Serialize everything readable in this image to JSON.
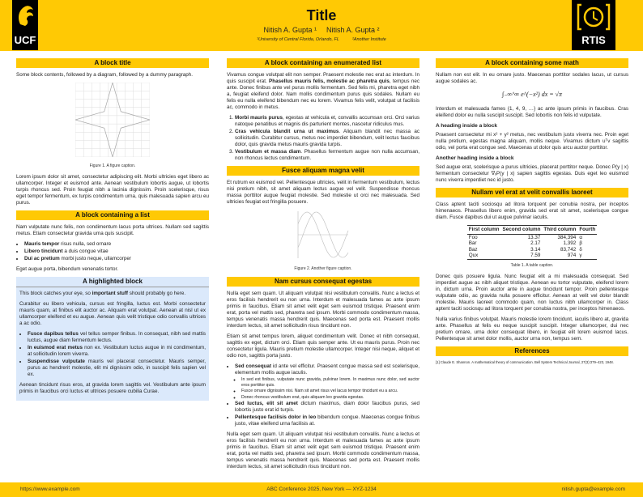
{
  "header": {
    "title": "Title",
    "authors": [
      "Nitish A. Gupta ¹",
      "Nitish A. Gupta ²"
    ],
    "affiliations": [
      "¹University of Central Florida, Orlando, FL",
      "²Another Institute"
    ],
    "logo_left": "UCF",
    "logo_right": "RTIS",
    "accent": "#FFC904"
  },
  "col1": {
    "b1": {
      "title": "A block title",
      "p1": "Some block contents, followed by a diagram, followed by a dummy paragraph.",
      "caption": "Figure 1. A figure caption.",
      "p2": "Lorem ipsum dolor sit amet, consectetur adipiscing elit. Morbi ultricies eget libero ac ullamcorper. Integer et euismod ante. Aenean vestibulum lobortis augue, ut lobortis turpis rhoncus sed. Proin feugiat nibh a lacinia dignissim. Proin scelerisque, risus eget tempor fermentum, ex turpis condimentum urna, quis malesuada sapien arcu eu purus."
    },
    "b2": {
      "title": "A block containing a list",
      "p1": "Nam vulputate nunc felis, non condimentum lacus porta ultrices. Nullam sed sagittis metus. Etiam consectetur gravida urna quis suscipit.",
      "items": [
        {
          "b": "Mauris tempor",
          "t": " risus nulla, sed ornare"
        },
        {
          "b": "Libero tincidunt",
          "t": " a duis congue vitae"
        },
        {
          "b": "Dui ac pretium",
          "t": " morbi justo neque, ullamcorper"
        }
      ],
      "p2": "Eget augue porta, bibendum venenatis tortor."
    },
    "b3": {
      "title": "A highlighted block",
      "p1a": "This block catches your eye, so ",
      "p1b": "important stuff",
      "p1c": " should probably go here.",
      "p2": "Curabitur eu libero vehicula, cursus est fringilla, luctus est. Morbi consectetur mauris quam, at finibus elit auctor ac. Aliquam erat volutpat. Aenean at nisl ut ex ullamcorper eleifend et eu augue. Aenean quis velit tristique odio convallis ultrices a ac odio.",
      "items": [
        {
          "b": "Fusce dapibus tellus",
          "t": " vel tellus semper finibus. In consequat, nibh sed mattis luctus, augue diam fermentum lectus."
        },
        {
          "b": "In euismod erat metus",
          "t": " non ex. Vestibulum luctus augue in mi condimentum, at sollicitudin lorem viverra."
        },
        {
          "b": "Suspendisse vulputate",
          "t": " mauris vel placerat consectetur. Mauris semper, purus ac hendrerit molestie, elit mi dignissim odio, in suscipit felis sapien vel ex."
        }
      ],
      "p3": "Aenean tincidunt risus eros, at gravida lorem sagittis vel. Vestibulum ante ipsum primis in faucibus orci luctus et ultrices posuere cubilia Curae.",
      "bg": "#DBE9FB"
    }
  },
  "col2": {
    "b1": {
      "title": "A block containing an enumerated list",
      "p1a": "Vivamus congue volutpat elit non semper. Praesent molestie nec erat ac interdum. In quis suscipit erat. ",
      "p1b": "Phasellus mauris felis, molestie ac pharetra quis",
      "p1c": ", tempus nec ante. Donec finibus ante vel purus mollis fermentum. Sed felis mi, pharetra eget nibh a, feugiat eleifend dolor. Nam mollis condimentum purus quis sodales. Nullam eu felis eu nulla eleifend bibendum nec eu lorem. Vivamus felis velit, volutpat ut facilisis ac, commodo in metus.",
      "items": [
        {
          "b": "Morbi mauris purus",
          "t": ", egestas at vehicula et, convallis accumsan orci. Orci varius natoque penatibus et magnis dis parturient montes, nascetur ridiculus mus."
        },
        {
          "b": "Cras vehicula blandit urna ut maximus",
          "t": ". Aliquam blandit nec massa ac sollicitudin. Curabitur cursus, metus nec imperdiet bibendum, velit lectus faucibus dolor, quis gravida metus mauris gravida turpis."
        },
        {
          "b": "Vestibulum et massa diam",
          "t": ". Phasellus fermentum augue non nulla accumsan, non rhoncus lectus condimentum."
        }
      ]
    },
    "b2": {
      "title": "Fusce aliquam magna velit",
      "p1": "Et rutrum ex euismod vel. Pellentesque ultricies, velit in fermentum vestibulum, lectus nisi pretium nibh, sit amet aliquam lectus augue vel velit. Suspendisse rhoncus massa porttitor augue feugiat molestie. Sed molestie ut orci nec malesuada. Sed ultricies feugiat est fringilla posuere.",
      "caption": "Figure 2. Another figure caption."
    },
    "b3": {
      "title": "Nam cursus consequat egestas",
      "p1": "Nulla eget sem quam. Ut aliquam volutpat nisi vestibulum convallis. Nunc a lectus et eros facilisis hendrerit eu non urna. Interdum et malesuada fames ac ante ipsum primis in faucibus. Etiam sit amet velit eget sem euismod tristique. Praesent enim erat, porta vel mattis sed, pharetra sed ipsum. Morbi commodo condimentum massa, tempus venenatis massa hendrerit quis. Maecenas sed porta est. Praesent mollis interdum lectus, sit amet sollicitudin risus tincidunt non.",
      "p2": "Etiam sit amet tempus lorem, aliquet condimentum velit. Donec et nibh consequat, sagittis ex eget, dictum orci. Etiam quis semper ante. Ut eu mauris purus. Proin nec consectetur ligula. Mauris pretium molestie ullamcorper. Integer nisi neque, aliquet et odio non, sagittis porta justo.",
      "items": [
        {
          "b": "Sed consequat",
          "t": " id ante vel efficitur. Praesent congue massa sed est scelerisque, elementum mollis augue iaculis.",
          "sub": [
            "In sed est finibus, vulputate nunc gravida, pulvinar lorem. In maximus nunc dolor, sed auctor eros porttitor quis.",
            "Fusce ornare dignissim nisi. Nam sit amet risus vel lacus tempor tincidunt eu a arcu.",
            "Donec rhoncus vestibulum erat, quis aliquam leo gravida egestas."
          ]
        },
        {
          "b": "Sed luctus, elit sit amet",
          "t": " dictum maximus, diam dolor faucibus purus, sed lobortis justo erat id turpis."
        },
        {
          "b": "Pellentesque facilisis dolor in leo",
          "t": " bibendum congue. Maecenas congue finibus justo, vitae eleifend urna facilisis at."
        }
      ],
      "p3": "Nulla eget sem quam. Ut aliquam volutpat nisi vestibulum convallis. Nunc a lectus et eros facilisis hendrerit eu non urna. Interdum et malesuada fames ac ante ipsum primis in faucibus. Etiam sit amet velit eget sem euismod tristique. Praesent enim erat, porta vel mattis sed, pharetra sed ipsum. Morbi commodo condimentum massa, tempus venenatis massa hendrerit quis. Maecenas sed porta est. Praesent mollis interdum lectus, sit amet sollicitudin risus tincidunt non."
    }
  },
  "col3": {
    "b1": {
      "title": "A block containing some math",
      "p1": "Nullam non est elit. In eu ornare justo. Maecenas porttitor sodales lacus, ut cursus augue sodales ac.",
      "math": "∫₋∞^∞ e^(−x²) dx = √π",
      "p2": "Interdum et malesuada fames {1, 4, 9, …} ac ante ipsum primis in faucibus. Cras eleifend dolor eu nulla suscipit suscipit. Sed lobortis non felis id vulputate.",
      "h1": "A heading inside a block",
      "p3": "Praesent consectetur mi x² + y² metus, nec vestibulum justo viverra nec. Proin eget nulla pretium, egestas magna aliquam, mollis neque. Vivamus dictum uᵀv sagittis odio, vel porta erat congue sed. Maecenas ut dolor quis arcu auctor porttitor.",
      "h2": "Another heading inside a block",
      "p4": "Sed augue erat, scelerisque a purus ultricies, placerat porttitor neque. Donec P(y | x) fermentum consectetur ∇ₓP(y | x) sapien sagittis egestas. Duis eget leo euismod nunc viverra imperdiet nec id justo."
    },
    "b2": {
      "title": "Nullam vel erat at velit convallis laoreet",
      "p1": "Class aptent taciti sociosqu ad litora torquent per conubia nostra, per inceptos himenaeos. Phasellus libero enim, gravida sed erat sit amet, scelerisque congue diam. Fusce dapibus dui ut augue pulvinar iaculis.",
      "table": {
        "headers": [
          "First column",
          "Second column",
          "Third column",
          "Fourth"
        ],
        "rows": [
          [
            "Foo",
            "13.37",
            "384,394",
            "α"
          ],
          [
            "Bar",
            "2.17",
            "1,392",
            "β"
          ],
          [
            "Baz",
            "3.14",
            "83,742",
            "δ"
          ],
          [
            "Qux",
            "7.59",
            "974",
            "γ"
          ]
        ]
      },
      "caption": "Table 1. A table caption.",
      "p2": "Donec quis posuere ligula. Nunc feugiat elit a mi malesuada consequat. Sed imperdiet augue ac nibh aliquet tristique. Aenean eu tortor vulputate, eleifend lorem in, dictum urna. Proin auctor ante in augue tincidunt tempor. Proin pellentesque vulputate odio, ac gravida nulla posuere efficitur. Aenean at velit vel dolor blandit molestie. Mauris laoreet commodo quam, non luctus nibh ullamcorper in. Class aptent taciti sociosqu ad litora torquent per conubia nostra, per inceptos himenaeos.",
      "p3": "Nulla varius finibus volutpat. Mauris molestie lorem tincidunt, iaculis libero at, gravida ante. Phasellus at felis eu neque suscipit suscipit. Integer ullamcorper, dui nec pretium ornare, urna dolor consequat libero, in feugiat elit lorem euismod lacus. Pellentesque sit amet dolor mollis, auctor urna non, tempus sem."
    },
    "b3": {
      "title": "References",
      "ref": "[1]  Claude E. Shannon. A mathematical theory of communication. Bell System Technical Journal, 27(3):379–423, 1948."
    }
  },
  "footer": {
    "left": "https://www.example.com",
    "center": "ABC Conference 2025, New York — XYZ-1234",
    "right": "nitish.gupta@example.com"
  }
}
